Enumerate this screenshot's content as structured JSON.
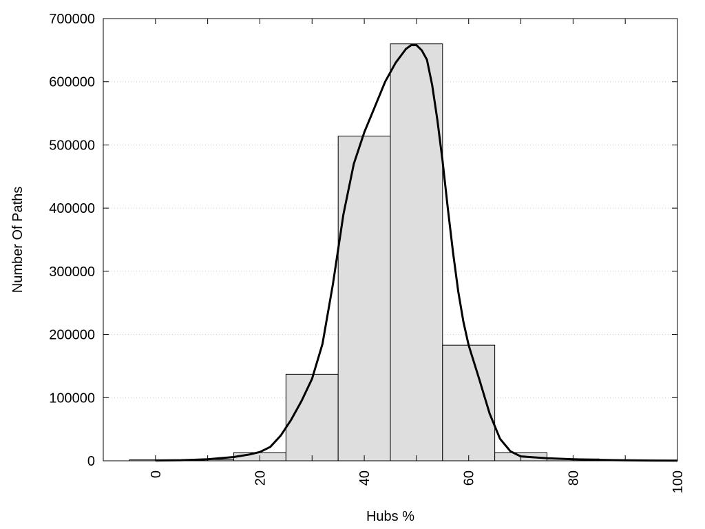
{
  "chart_data": {
    "type": "bar",
    "title": "",
    "xlabel": "Hubs %",
    "ylabel": "Number Of Paths",
    "xlim": [
      -10,
      100
    ],
    "ylim": [
      0,
      700000
    ],
    "grid": "horizontal dotted",
    "x_ticks": [
      0,
      20,
      40,
      60,
      80,
      100
    ],
    "y_ticks": [
      0,
      100000,
      200000,
      300000,
      400000,
      500000,
      600000,
      700000
    ],
    "bar_width": 10,
    "bars": {
      "x": [
        0,
        10,
        20,
        30,
        40,
        50,
        60,
        70,
        80,
        90,
        100
      ],
      "values": [
        1500,
        2000,
        13000,
        137000,
        514000,
        660000,
        183000,
        13000,
        3000,
        1000,
        500
      ]
    },
    "curve": {
      "x": [
        0,
        5,
        10,
        15,
        18,
        20,
        22,
        24,
        26,
        28,
        30,
        32,
        34,
        36,
        38,
        40,
        42,
        44,
        46,
        48,
        49,
        50,
        51,
        52,
        53,
        54,
        55,
        56,
        57,
        58,
        59,
        60,
        62,
        64,
        66,
        68,
        70,
        75,
        80,
        85,
        90,
        95,
        100
      ],
      "values": [
        500,
        1000,
        2500,
        6000,
        10000,
        14000,
        22000,
        40000,
        65000,
        95000,
        130000,
        185000,
        280000,
        390000,
        470000,
        520000,
        560000,
        600000,
        630000,
        652000,
        658000,
        658000,
        650000,
        635000,
        595000,
        540000,
        475000,
        400000,
        330000,
        268000,
        220000,
        183000,
        130000,
        75000,
        35000,
        15000,
        7000,
        4000,
        2500,
        1500,
        800,
        400,
        200
      ]
    }
  }
}
